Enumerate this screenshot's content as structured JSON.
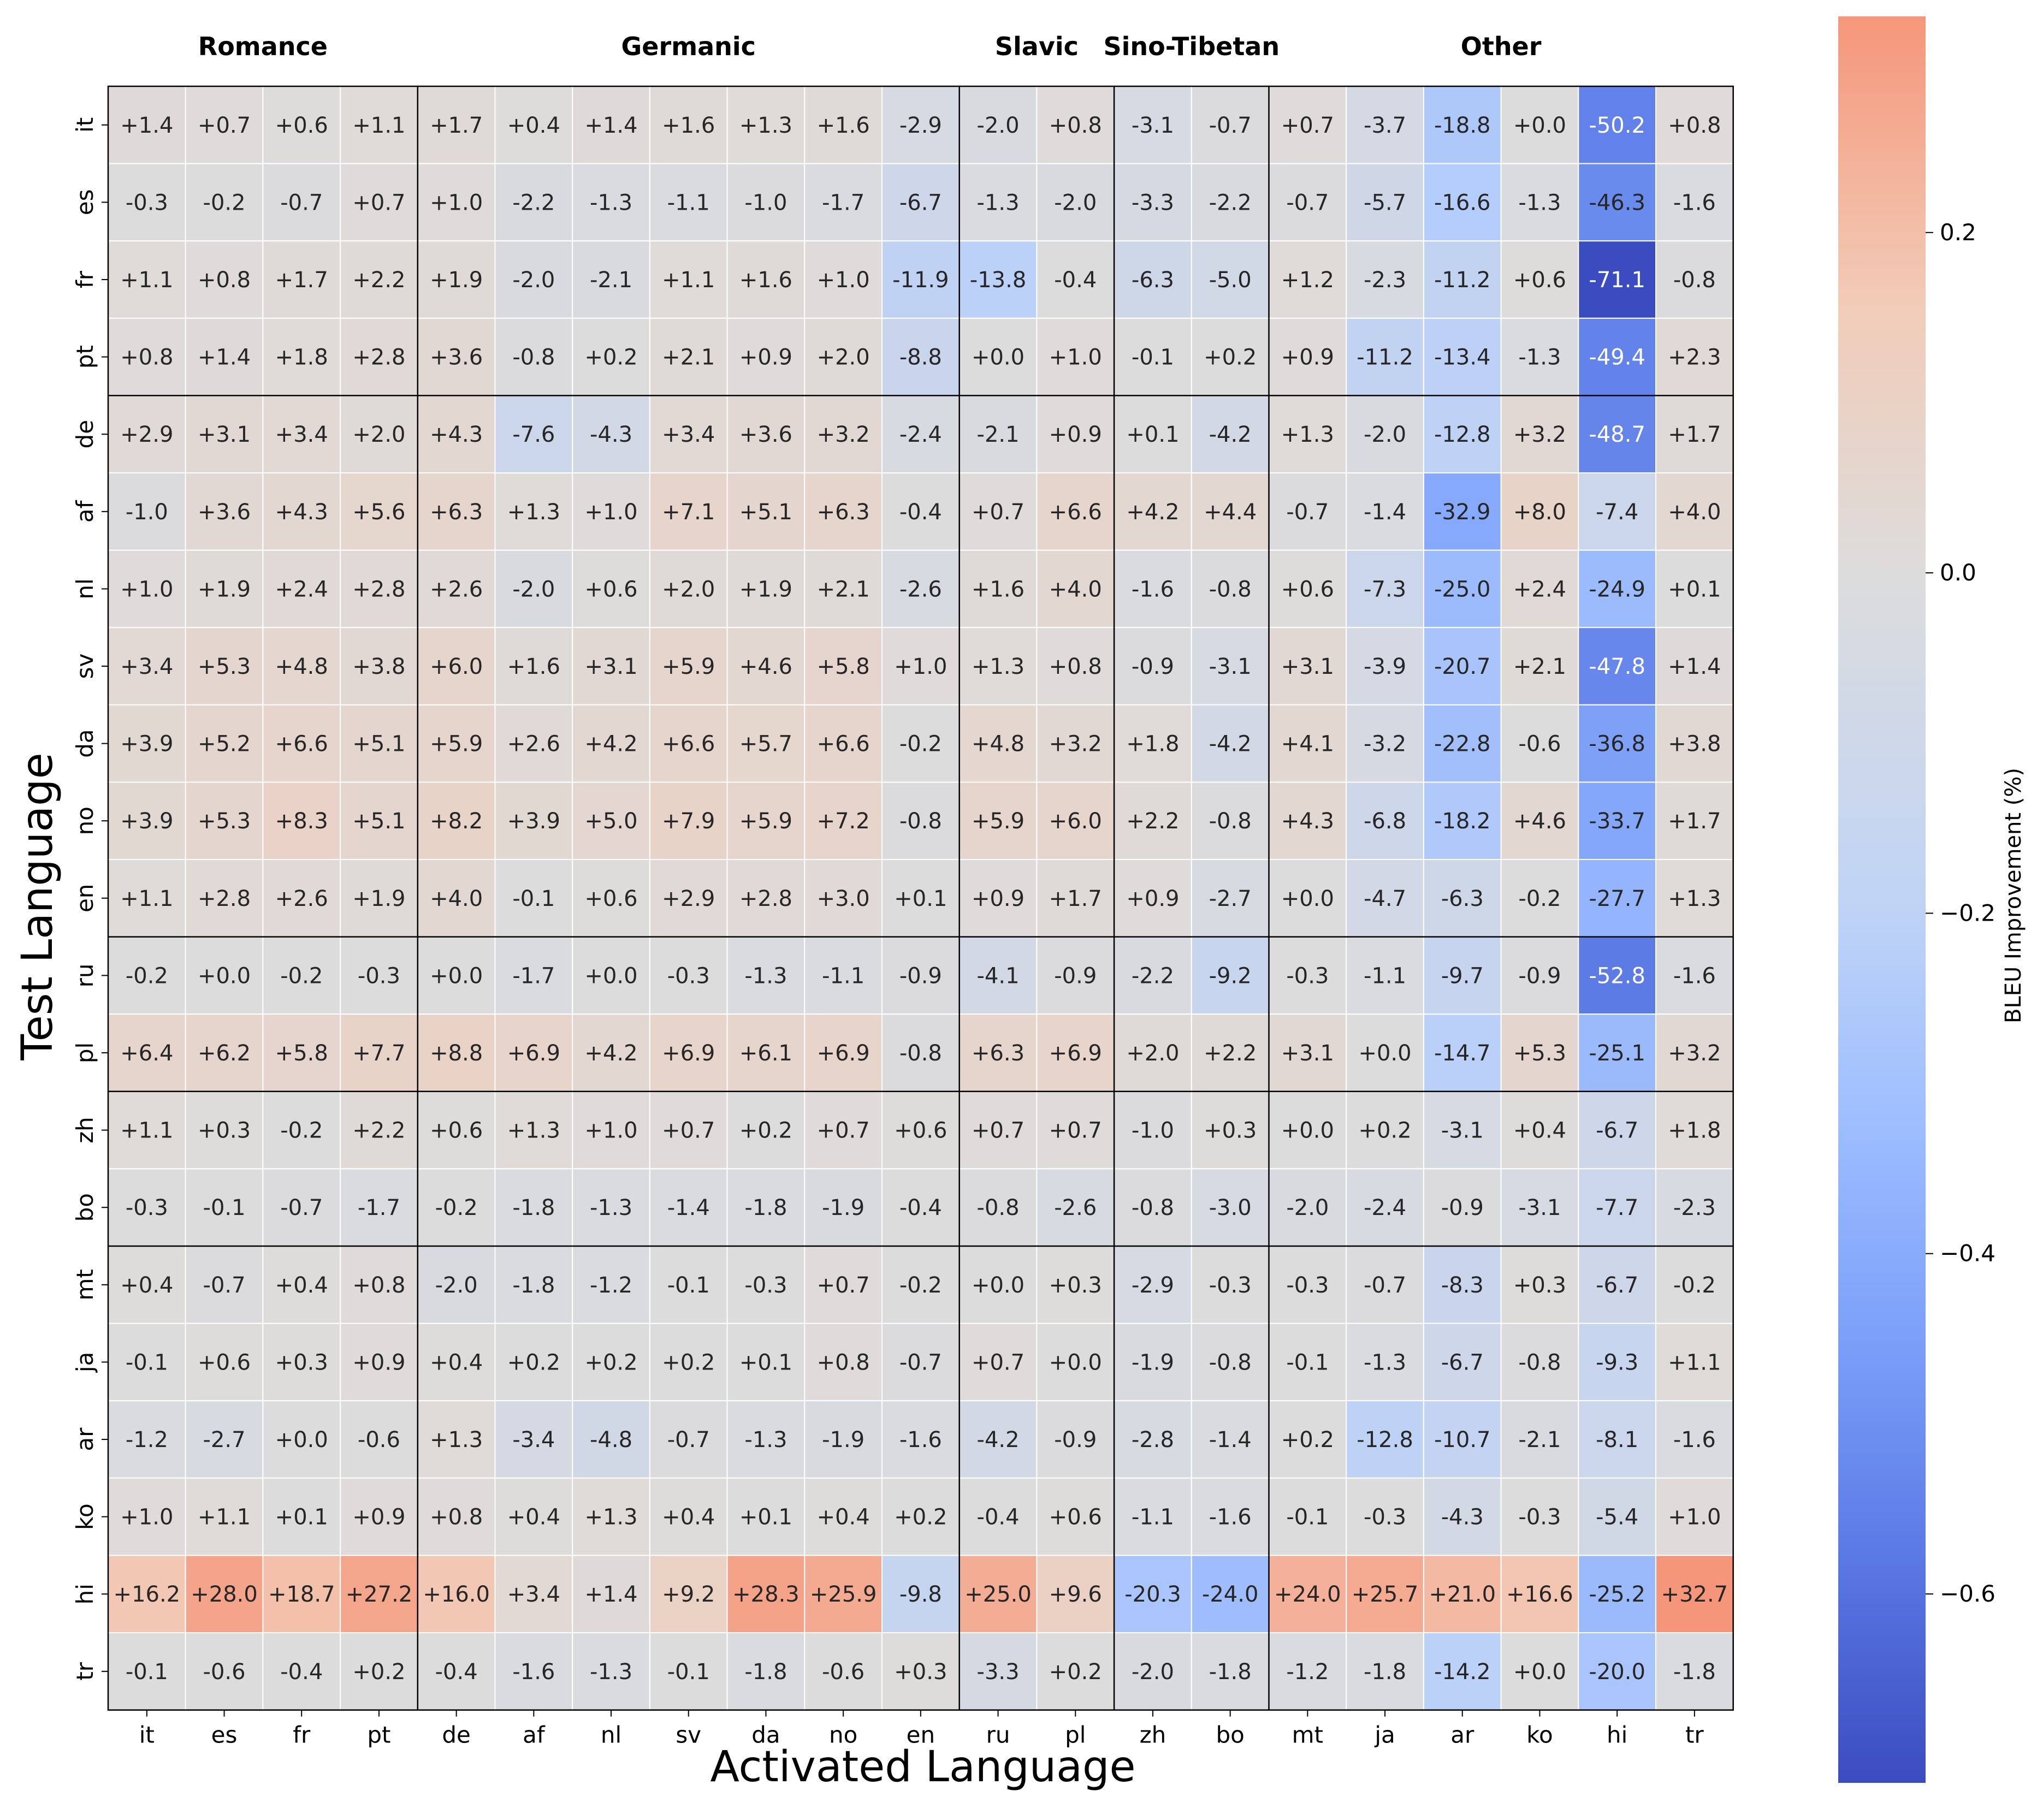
{
  "chart_data": {
    "type": "heatmap",
    "xlabel": "Activated Language",
    "ylabel": "Test Language",
    "colorbar_label": "BLEU Improvement (%)",
    "colorbar_ticks": [
      "0.2",
      "0.0",
      "−0.2",
      "−0.4",
      "−0.6"
    ],
    "colorbar_tick_values": [
      0.2,
      0.0,
      -0.2,
      -0.4,
      -0.6
    ],
    "color_range": [
      -0.711,
      0.327
    ],
    "colormap": "coolwarm",
    "colors": {
      "low": "#3b4cc0",
      "mid": "#dddcdc",
      "high": "#f5967a",
      "grid": "#ffffff",
      "divider": "#000000"
    },
    "x_categories": [
      "it",
      "es",
      "fr",
      "pt",
      "de",
      "af",
      "nl",
      "sv",
      "da",
      "no",
      "en",
      "ru",
      "pl",
      "zh",
      "bo",
      "mt",
      "ja",
      "ar",
      "ko",
      "hi",
      "tr"
    ],
    "y_categories": [
      "it",
      "es",
      "fr",
      "pt",
      "de",
      "af",
      "nl",
      "sv",
      "da",
      "no",
      "en",
      "ru",
      "pl",
      "zh",
      "bo",
      "mt",
      "ja",
      "ar",
      "ko",
      "hi",
      "tr"
    ],
    "x_groups": [
      {
        "label": "Romance",
        "start": 0,
        "end": 3
      },
      {
        "label": "Germanic",
        "start": 4,
        "end": 10
      },
      {
        "label": "Slavic",
        "start": 11,
        "end": 12
      },
      {
        "label": "Sino-Tibetan",
        "start": 13,
        "end": 14
      },
      {
        "label": "Other",
        "start": 15,
        "end": 20
      }
    ],
    "y_group_boundaries": [
      4,
      11,
      13,
      15
    ],
    "values": [
      [
        "+1.4",
        "+0.7",
        "+0.6",
        "+1.1",
        "+1.7",
        "+0.4",
        "+1.4",
        "+1.6",
        "+1.3",
        "+1.6",
        "-2.9",
        "-2.0",
        "+0.8",
        "-3.1",
        "-0.7",
        "+0.7",
        "-3.7",
        "-18.8",
        "+0.0",
        "-50.2",
        "+0.8"
      ],
      [
        "-0.3",
        "-0.2",
        "-0.7",
        "+0.7",
        "+1.0",
        "-2.2",
        "-1.3",
        "-1.1",
        "-1.0",
        "-1.7",
        "-6.7",
        "-1.3",
        "-2.0",
        "-3.3",
        "-2.2",
        "-0.7",
        "-5.7",
        "-16.6",
        "-1.3",
        "-46.3",
        "-1.6"
      ],
      [
        "+1.1",
        "+0.8",
        "+1.7",
        "+2.2",
        "+1.9",
        "-2.0",
        "-2.1",
        "+1.1",
        "+1.6",
        "+1.0",
        "-11.9",
        "-13.8",
        "-0.4",
        "-6.3",
        "-5.0",
        "+1.2",
        "-2.3",
        "-11.2",
        "+0.6",
        "-71.1",
        "-0.8"
      ],
      [
        "+0.8",
        "+1.4",
        "+1.8",
        "+2.8",
        "+3.6",
        "-0.8",
        "+0.2",
        "+2.1",
        "+0.9",
        "+2.0",
        "-8.8",
        "+0.0",
        "+1.0",
        "-0.1",
        "+0.2",
        "+0.9",
        "-11.2",
        "-13.4",
        "-1.3",
        "-49.4",
        "+2.3"
      ],
      [
        "+2.9",
        "+3.1",
        "+3.4",
        "+2.0",
        "+4.3",
        "-7.6",
        "-4.3",
        "+3.4",
        "+3.6",
        "+3.2",
        "-2.4",
        "-2.1",
        "+0.9",
        "+0.1",
        "-4.2",
        "+1.3",
        "-2.0",
        "-12.8",
        "+3.2",
        "-48.7",
        "+1.7"
      ],
      [
        "-1.0",
        "+3.6",
        "+4.3",
        "+5.6",
        "+6.3",
        "+1.3",
        "+1.0",
        "+7.1",
        "+5.1",
        "+6.3",
        "-0.4",
        "+0.7",
        "+6.6",
        "+4.2",
        "+4.4",
        "-0.7",
        "-1.4",
        "-32.9",
        "+8.0",
        "-7.4",
        "+4.0"
      ],
      [
        "+1.0",
        "+1.9",
        "+2.4",
        "+2.8",
        "+2.6",
        "-2.0",
        "+0.6",
        "+2.0",
        "+1.9",
        "+2.1",
        "-2.6",
        "+1.6",
        "+4.0",
        "-1.6",
        "-0.8",
        "+0.6",
        "-7.3",
        "-25.0",
        "+2.4",
        "-24.9",
        "+0.1"
      ],
      [
        "+3.4",
        "+5.3",
        "+4.8",
        "+3.8",
        "+6.0",
        "+1.6",
        "+3.1",
        "+5.9",
        "+4.6",
        "+5.8",
        "+1.0",
        "+1.3",
        "+0.8",
        "-0.9",
        "-3.1",
        "+3.1",
        "-3.9",
        "-20.7",
        "+2.1",
        "-47.8",
        "+1.4"
      ],
      [
        "+3.9",
        "+5.2",
        "+6.6",
        "+5.1",
        "+5.9",
        "+2.6",
        "+4.2",
        "+6.6",
        "+5.7",
        "+6.6",
        "-0.2",
        "+4.8",
        "+3.2",
        "+1.8",
        "-4.2",
        "+4.1",
        "-3.2",
        "-22.8",
        "-0.6",
        "-36.8",
        "+3.8"
      ],
      [
        "+3.9",
        "+5.3",
        "+8.3",
        "+5.1",
        "+8.2",
        "+3.9",
        "+5.0",
        "+7.9",
        "+5.9",
        "+7.2",
        "-0.8",
        "+5.9",
        "+6.0",
        "+2.2",
        "-0.8",
        "+4.3",
        "-6.8",
        "-18.2",
        "+4.6",
        "-33.7",
        "+1.7"
      ],
      [
        "+1.1",
        "+2.8",
        "+2.6",
        "+1.9",
        "+4.0",
        "-0.1",
        "+0.6",
        "+2.9",
        "+2.8",
        "+3.0",
        "+0.1",
        "+0.9",
        "+1.7",
        "+0.9",
        "-2.7",
        "+0.0",
        "-4.7",
        "-6.3",
        "-0.2",
        "-27.7",
        "+1.3"
      ],
      [
        "-0.2",
        "+0.0",
        "-0.2",
        "-0.3",
        "+0.0",
        "-1.7",
        "+0.0",
        "-0.3",
        "-1.3",
        "-1.1",
        "-0.9",
        "-4.1",
        "-0.9",
        "-2.2",
        "-9.2",
        "-0.3",
        "-1.1",
        "-9.7",
        "-0.9",
        "-52.8",
        "-1.6"
      ],
      [
        "+6.4",
        "+6.2",
        "+5.8",
        "+7.7",
        "+8.8",
        "+6.9",
        "+4.2",
        "+6.9",
        "+6.1",
        "+6.9",
        "-0.8",
        "+6.3",
        "+6.9",
        "+2.0",
        "+2.2",
        "+3.1",
        "+0.0",
        "-14.7",
        "+5.3",
        "-25.1",
        "+3.2"
      ],
      [
        "+1.1",
        "+0.3",
        "-0.2",
        "+2.2",
        "+0.6",
        "+1.3",
        "+1.0",
        "+0.7",
        "+0.2",
        "+0.7",
        "+0.6",
        "+0.7",
        "+0.7",
        "-1.0",
        "+0.3",
        "+0.0",
        "+0.2",
        "-3.1",
        "+0.4",
        "-6.7",
        "+1.8"
      ],
      [
        "-0.3",
        "-0.1",
        "-0.7",
        "-1.7",
        "-0.2",
        "-1.8",
        "-1.3",
        "-1.4",
        "-1.8",
        "-1.9",
        "-0.4",
        "-0.8",
        "-2.6",
        "-0.8",
        "-3.0",
        "-2.0",
        "-2.4",
        "-0.9",
        "-3.1",
        "-7.7",
        "-2.3"
      ],
      [
        "+0.4",
        "-0.7",
        "+0.4",
        "+0.8",
        "-2.0",
        "-1.8",
        "-1.2",
        "-0.1",
        "-0.3",
        "+0.7",
        "-0.2",
        "+0.0",
        "+0.3",
        "-2.9",
        "-0.3",
        "-0.3",
        "-0.7",
        "-8.3",
        "+0.3",
        "-6.7",
        "-0.2"
      ],
      [
        "-0.1",
        "+0.6",
        "+0.3",
        "+0.9",
        "+0.4",
        "+0.2",
        "+0.2",
        "+0.2",
        "+0.1",
        "+0.8",
        "-0.7",
        "+0.7",
        "+0.0",
        "-1.9",
        "-0.8",
        "-0.1",
        "-1.3",
        "-6.7",
        "-0.8",
        "-9.3",
        "+1.1"
      ],
      [
        "-1.2",
        "-2.7",
        "+0.0",
        "-0.6",
        "+1.3",
        "-3.4",
        "-4.8",
        "-0.7",
        "-1.3",
        "-1.9",
        "-1.6",
        "-4.2",
        "-0.9",
        "-2.8",
        "-1.4",
        "+0.2",
        "-12.8",
        "-10.7",
        "-2.1",
        "-8.1",
        "-1.6"
      ],
      [
        "+1.0",
        "+1.1",
        "+0.1",
        "+0.9",
        "+0.8",
        "+0.4",
        "+1.3",
        "+0.4",
        "+0.1",
        "+0.4",
        "+0.2",
        "-0.4",
        "+0.6",
        "-1.1",
        "-1.6",
        "-0.1",
        "-0.3",
        "-4.3",
        "-0.3",
        "-5.4",
        "+1.0"
      ],
      [
        "+16.2",
        "+28.0",
        "+18.7",
        "+27.2",
        "+16.0",
        "+3.4",
        "+1.4",
        "+9.2",
        "+28.3",
        "+25.9",
        "-9.8",
        "+25.0",
        "+9.6",
        "-20.3",
        "-24.0",
        "+24.0",
        "+25.7",
        "+21.0",
        "+16.6",
        "-25.2",
        "+32.7"
      ],
      [
        "-0.1",
        "-0.6",
        "-0.4",
        "+0.2",
        "-0.4",
        "-1.6",
        "-1.3",
        "-0.1",
        "-1.8",
        "-0.6",
        "+0.3",
        "-3.3",
        "+0.2",
        "-2.0",
        "-1.8",
        "-1.2",
        "-1.8",
        "-14.2",
        "+0.0",
        "-20.0",
        "-1.8"
      ]
    ]
  }
}
